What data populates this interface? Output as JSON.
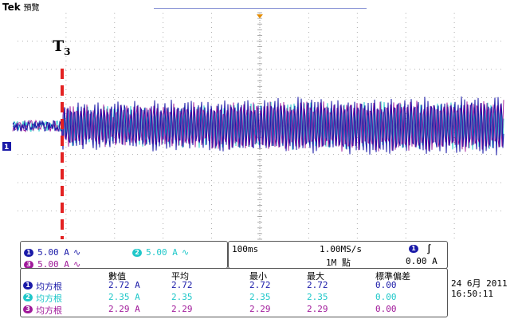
{
  "header": {
    "brand": "Tek",
    "mode": "預覽"
  },
  "colors": {
    "ch1": "#1a1aa8",
    "ch2": "#1fc7c9",
    "ch3": "#a0199a",
    "background": "#ffffff",
    "grid": "#9a9a9a",
    "marker": "#e32222",
    "trigger": "#e38a00"
  },
  "annotation": {
    "marker_label": "T",
    "marker_sub": "3"
  },
  "channels": [
    {
      "badge": "1",
      "scale": "5.00 A",
      "coupling": "∿"
    },
    {
      "badge": "2",
      "scale": "5.00 A",
      "coupling": "∿"
    },
    {
      "badge": "3",
      "scale": "5.00 A",
      "coupling": "∿"
    }
  ],
  "timebase": {
    "time_div": "100ms",
    "sample_rate": "1.00MS/s",
    "record": "1M 點",
    "trig_badge": "1",
    "trig_slope": "∫",
    "trig_level": "0.00 A"
  },
  "measurements": {
    "headers": [
      "數值",
      "平均",
      "最小",
      "最大",
      "標準偏差"
    ],
    "rows": [
      {
        "badge": "1",
        "label": "均方根",
        "values": [
          "2.72 A",
          "2.72",
          "2.72",
          "2.72",
          "0.00"
        ]
      },
      {
        "badge": "2",
        "label": "均方根",
        "values": [
          "2.35 A",
          "2.35",
          "2.35",
          "2.35",
          "0.00"
        ]
      },
      {
        "badge": "3",
        "label": "均方根",
        "values": [
          "2.29 A",
          "2.29",
          "2.29",
          "2.29",
          "0.00"
        ]
      }
    ]
  },
  "datetime": {
    "date": "24 6月 2011",
    "time": "16:50:11"
  },
  "ground_marker": "1"
}
